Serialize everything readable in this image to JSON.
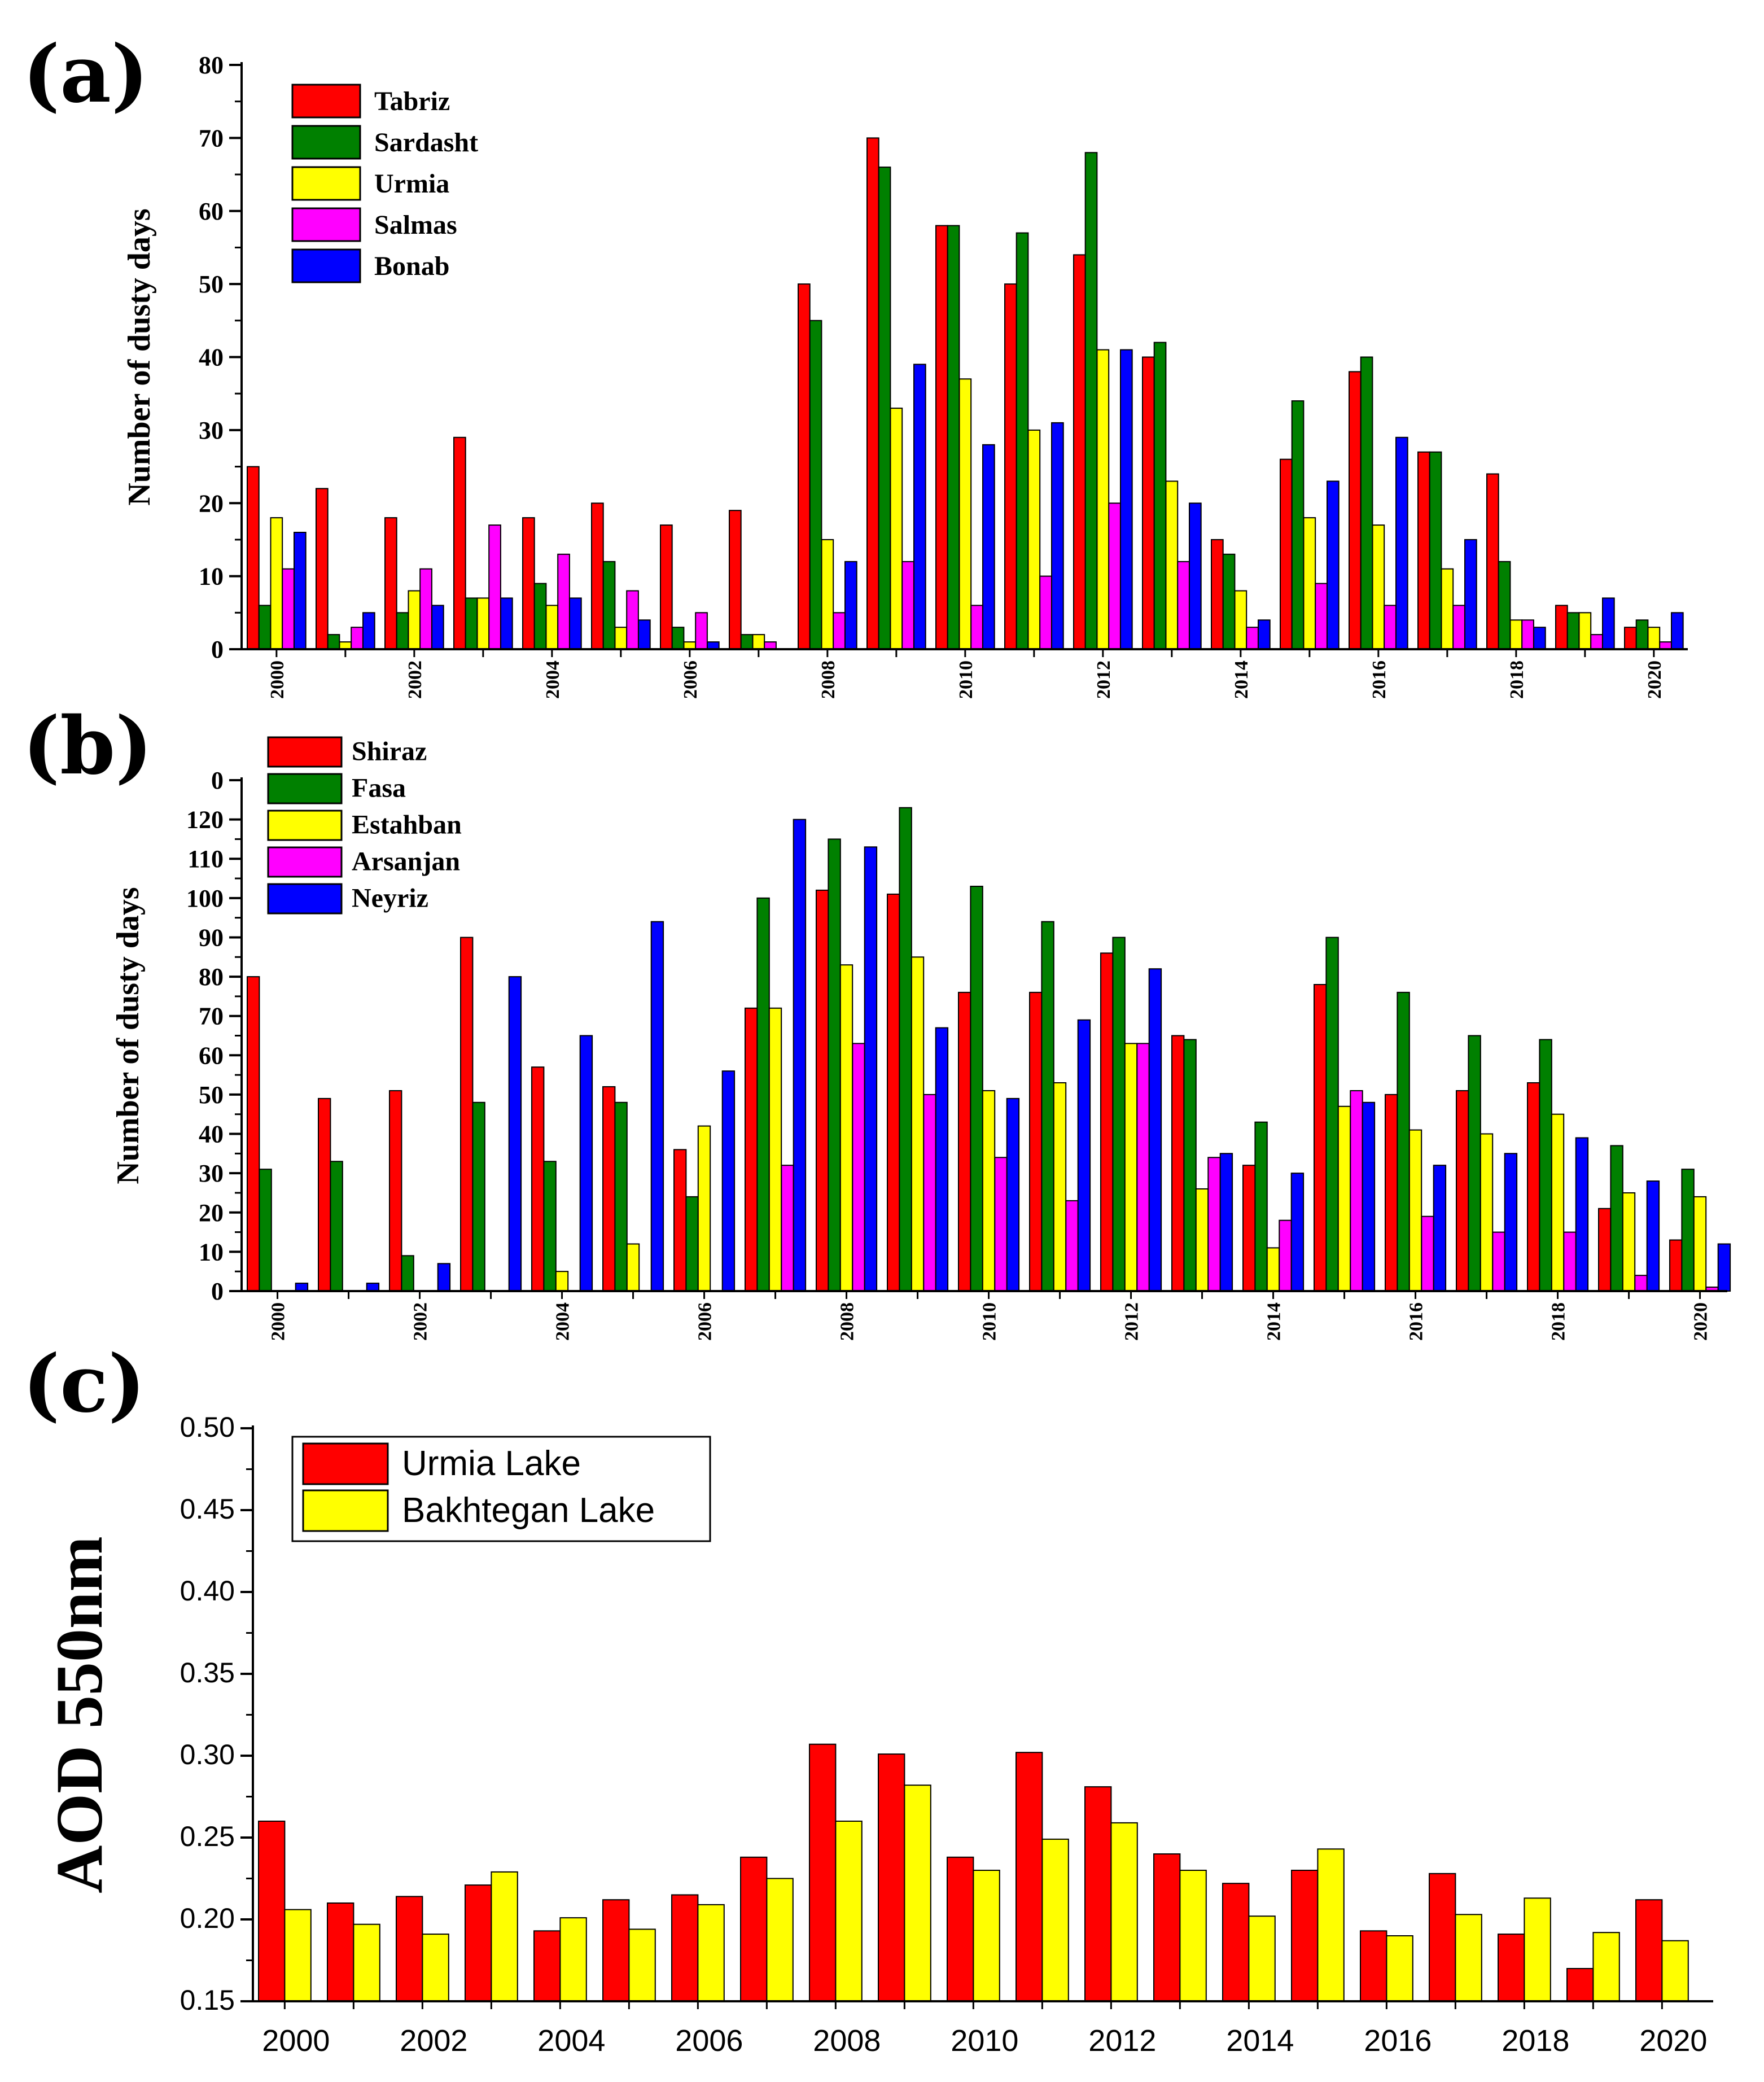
{
  "panels": [
    "(a)",
    "(b)",
    "(c)"
  ],
  "chart_data": [
    {
      "type": "bar",
      "label": "(a)",
      "ylabel": "Number of dusty days",
      "xlabel": "",
      "ylim": [
        0,
        80
      ],
      "yticks": [
        0,
        10,
        20,
        30,
        40,
        50,
        60,
        70,
        80
      ],
      "x": [
        2000,
        2001,
        2002,
        2003,
        2004,
        2005,
        2006,
        2007,
        2008,
        2009,
        2010,
        2011,
        2012,
        2013,
        2014,
        2015,
        2016,
        2017,
        2018,
        2019,
        2020
      ],
      "xtick_labels": [
        "2000",
        "2002",
        "2004",
        "2006",
        "2008",
        "2010",
        "2012",
        "2014",
        "2016",
        "2018",
        "2020"
      ],
      "series": [
        {
          "name": "Tabriz",
          "color": "#ff0000",
          "values": [
            25,
            22,
            18,
            29,
            18,
            20,
            17,
            19,
            50,
            70,
            58,
            50,
            54,
            40,
            15,
            26,
            38,
            27,
            24,
            6,
            3
          ]
        },
        {
          "name": "Sardasht",
          "color": "#008000",
          "values": [
            6,
            2,
            5,
            7,
            9,
            12,
            3,
            2,
            45,
            66,
            58,
            57,
            68,
            42,
            13,
            34,
            40,
            27,
            12,
            5,
            4
          ]
        },
        {
          "name": "Urmia",
          "color": "#ffff00",
          "values": [
            18,
            1,
            8,
            7,
            6,
            3,
            1,
            2,
            15,
            33,
            37,
            30,
            41,
            23,
            8,
            18,
            17,
            11,
            4,
            5,
            3
          ]
        },
        {
          "name": "Salmas",
          "color": "#ff00ff",
          "values": [
            11,
            3,
            11,
            17,
            13,
            8,
            5,
            1,
            5,
            12,
            6,
            10,
            20,
            12,
            3,
            9,
            6,
            6,
            4,
            2,
            1
          ]
        },
        {
          "name": "Bonab",
          "color": "#0000ff",
          "values": [
            16,
            5,
            6,
            7,
            7,
            4,
            1,
            0,
            12,
            39,
            28,
            31,
            41,
            20,
            4,
            23,
            29,
            15,
            3,
            7,
            5
          ]
        }
      ]
    },
    {
      "type": "bar",
      "label": "(b)",
      "ylabel": "Number of dusty days",
      "xlabel": "",
      "ylim": [
        0,
        130
      ],
      "yticks": [
        0,
        10,
        20,
        30,
        40,
        50,
        60,
        70,
        80,
        90,
        100,
        110,
        120
      ],
      "top_tick_label": "0",
      "x": [
        2000,
        2001,
        2002,
        2003,
        2004,
        2005,
        2006,
        2007,
        2008,
        2009,
        2010,
        2011,
        2012,
        2013,
        2014,
        2015,
        2016,
        2017,
        2018,
        2019,
        2020
      ],
      "xtick_labels": [
        "2000",
        "2002",
        "2004",
        "2006",
        "2008",
        "2010",
        "2012",
        "2014",
        "2016",
        "2018",
        "2020"
      ],
      "series": [
        {
          "name": "Shiraz",
          "color": "#ff0000",
          "values": [
            80,
            49,
            51,
            90,
            57,
            52,
            36,
            72,
            102,
            101,
            76,
            76,
            86,
            65,
            32,
            78,
            50,
            51,
            53,
            21,
            13
          ]
        },
        {
          "name": "Fasa",
          "color": "#008000",
          "values": [
            31,
            33,
            9,
            48,
            33,
            48,
            24,
            100,
            115,
            123,
            103,
            94,
            90,
            64,
            43,
            90,
            76,
            65,
            64,
            37,
            31
          ]
        },
        {
          "name": "Estahban",
          "color": "#ffff00",
          "values": [
            0,
            0,
            0,
            0,
            5,
            12,
            42,
            72,
            83,
            85,
            51,
            53,
            63,
            26,
            11,
            47,
            41,
            40,
            45,
            25,
            24
          ]
        },
        {
          "name": "Arsanjan",
          "color": "#ff00ff",
          "values": [
            0,
            0,
            0,
            0,
            0,
            0,
            0,
            32,
            63,
            50,
            34,
            23,
            63,
            34,
            18,
            51,
            19,
            15,
            15,
            4,
            1
          ]
        },
        {
          "name": "Neyriz",
          "color": "#0000ff",
          "values": [
            2,
            2,
            7,
            80,
            65,
            94,
            56,
            120,
            113,
            67,
            49,
            69,
            82,
            35,
            30,
            48,
            32,
            35,
            39,
            28,
            12
          ]
        }
      ]
    },
    {
      "type": "bar",
      "label": "(c)",
      "ylabel": "AOD 550nm",
      "xlabel": "",
      "ylim": [
        0.15,
        0.5
      ],
      "yticks": [
        "0.15",
        "0.20",
        "0.25",
        "0.30",
        "0.35",
        "0.40",
        "0.45",
        "0.50"
      ],
      "x": [
        2000,
        2001,
        2002,
        2003,
        2004,
        2005,
        2006,
        2007,
        2008,
        2009,
        2010,
        2011,
        2012,
        2013,
        2014,
        2015,
        2016,
        2017,
        2018,
        2019,
        2020
      ],
      "xtick_labels": [
        "2000",
        "2002",
        "2004",
        "2006",
        "2008",
        "2010",
        "2012",
        "2014",
        "2016",
        "2018",
        "2020"
      ],
      "series": [
        {
          "name": "Urmia Lake",
          "color": "#ff0000",
          "values": [
            0.26,
            0.21,
            0.214,
            0.221,
            0.193,
            0.212,
            0.215,
            0.238,
            0.307,
            0.301,
            0.238,
            0.302,
            0.281,
            0.24,
            0.222,
            0.23,
            0.193,
            0.228,
            0.191,
            0.17,
            0.212
          ]
        },
        {
          "name": "Bakhtegan Lake",
          "color": "#ffff00",
          "values": [
            0.206,
            0.197,
            0.191,
            0.229,
            0.201,
            0.194,
            0.209,
            0.225,
            0.26,
            0.282,
            0.23,
            0.249,
            0.259,
            0.23,
            0.202,
            0.243,
            0.19,
            0.203,
            0.213,
            0.192,
            0.187
          ]
        }
      ]
    }
  ]
}
